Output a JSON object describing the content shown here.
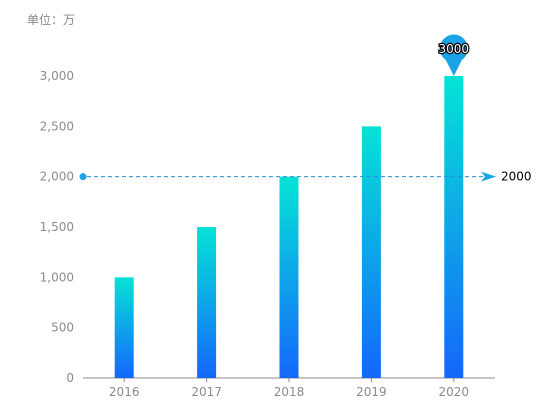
{
  "chart_data": {
    "type": "bar",
    "unit_label": "单位：万",
    "categories": [
      "2016",
      "2017",
      "2018",
      "2019",
      "2020"
    ],
    "values": [
      1000,
      1500,
      2000,
      2500,
      3000
    ],
    "ylim": [
      0,
      3000
    ],
    "yticks": [
      0,
      500,
      1000,
      1500,
      2000,
      2500,
      3000
    ],
    "ytick_labels": [
      "0",
      "500",
      "1,000",
      "1,500",
      "2,000",
      "2,500",
      "3,000"
    ],
    "grid": false,
    "legend": "none",
    "mark_line": {
      "value": 2000,
      "label": "2000"
    },
    "mark_point": {
      "category": "2020",
      "value": 3000,
      "label": "3000"
    },
    "colors": {
      "bar_top": "#06e3d6",
      "bar_bottom": "#1467fb",
      "mark_line": "#2d8fd5",
      "mark_point": "#1aa3e6",
      "axis": "#8c8c8c"
    }
  }
}
